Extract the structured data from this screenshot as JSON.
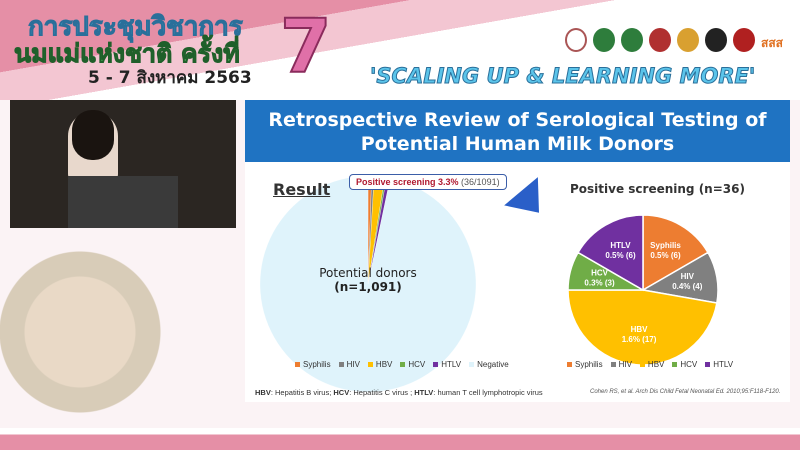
{
  "header": {
    "event_line1": "การประชุมวิชาการ",
    "event_line2": "นมแม่แห่งชาติ ครั้งที่",
    "edition": "7",
    "dates": "5 - 7 สิงหาคม 2563",
    "slogan": "'SCALING UP & LEARNING MORE'",
    "logo_text": "สสส"
  },
  "slide": {
    "title_line1": "Retrospective Review of Serological Testing of",
    "title_line2": "Potential Human Milk Donors",
    "result_label": "Result",
    "callout_bold": "Positive screening 3.3%",
    "callout_rest": " (36/1091)",
    "left_label1": "Potential donors",
    "left_label2": "(n=1,091)",
    "right_title": "Positive screening (n=36)",
    "footnote": {
      "hbv": "HBV",
      "hbv_text": ": Hepatitis B virus; ",
      "hcv": "HCV",
      "hcv_text": ": Hepatitis C virus ; ",
      "htlv": "HTLV",
      "htlv_text": ": human T cell lymphotropic virus"
    },
    "citation": "Cohen RS, et al. Arch Dis Child Fetal Neonatal Ed. 2010;95:F118-F120."
  },
  "chart_data": [
    {
      "type": "pie",
      "categories": [
        "Syphilis",
        "HIV",
        "HBV",
        "HCV",
        "HTLV",
        "Negative"
      ],
      "values": [
        6,
        4,
        17,
        3,
        6,
        1055
      ],
      "colors": [
        "#ed7d31",
        "#808080",
        "#ffc000",
        "#70ad47",
        "#7030a0",
        "#dff3fb"
      ],
      "legend": "bottom"
    },
    {
      "type": "pie",
      "title": "Positive screening (n=36)",
      "categories": [
        "Syphilis",
        "HIV",
        "HBV",
        "HCV",
        "HTLV"
      ],
      "values": [
        6,
        4,
        17,
        3,
        6
      ],
      "data_labels": [
        "0.5% (6)",
        "0.4% (4)",
        "1.6% (17)",
        "0.3% (3)",
        "0.5% (6)"
      ],
      "colors": [
        "#ed7d31",
        "#808080",
        "#ffc000",
        "#70ad47",
        "#7030a0"
      ],
      "legend": "bottom"
    }
  ]
}
